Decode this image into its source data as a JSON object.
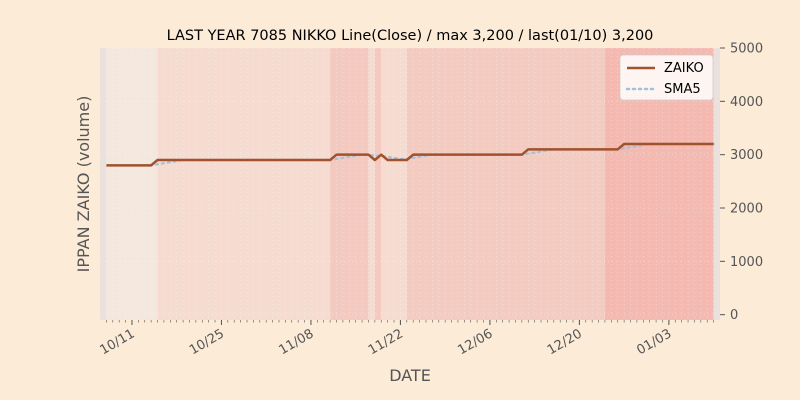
{
  "chart_data": {
    "type": "line",
    "title": "LAST YEAR 7085 NIKKO Line(Close) / max 3,200 / last(01/10) 3,200",
    "xlabel": "DATE",
    "ylabel": "IPPAN ZAIKO (volume)",
    "ylim": [
      -100,
      5000
    ],
    "y_axis_side": "right",
    "yticks": [
      0,
      1000,
      2000,
      3000,
      4000,
      5000
    ],
    "ytick_labels": [
      "0",
      "1000",
      "2000",
      "3000",
      "4000",
      "5000"
    ],
    "xlim": [
      "10/06",
      "01/11"
    ],
    "xticks": [
      "10/11",
      "10/25",
      "11/08",
      "11/22",
      "12/06",
      "12/20",
      "01/03"
    ],
    "grid": true,
    "legend_position": "top-right",
    "dates": [
      "10/07",
      "10/08",
      "10/09",
      "10/10",
      "10/11",
      "10/12",
      "10/13",
      "10/14",
      "10/15",
      "10/16",
      "10/17",
      "10/18",
      "10/19",
      "10/20",
      "10/21",
      "10/22",
      "10/23",
      "10/24",
      "10/25",
      "10/26",
      "10/27",
      "10/28",
      "10/29",
      "10/30",
      "10/31",
      "11/01",
      "11/02",
      "11/03",
      "11/04",
      "11/05",
      "11/06",
      "11/07",
      "11/08",
      "11/09",
      "11/10",
      "11/11",
      "11/12",
      "11/13",
      "11/14",
      "11/15",
      "11/16",
      "11/17",
      "11/18",
      "11/19",
      "11/20",
      "11/21",
      "11/22",
      "11/23",
      "11/24",
      "11/25",
      "11/26",
      "11/27",
      "11/28",
      "11/29",
      "11/30",
      "12/01",
      "12/02",
      "12/03",
      "12/04",
      "12/05",
      "12/06",
      "12/07",
      "12/08",
      "12/09",
      "12/10",
      "12/11",
      "12/12",
      "12/13",
      "12/14",
      "12/15",
      "12/16",
      "12/17",
      "12/18",
      "12/19",
      "12/20",
      "12/21",
      "12/22",
      "12/23",
      "12/24",
      "12/25",
      "12/26",
      "12/27",
      "12/28",
      "12/29",
      "12/30",
      "12/31",
      "01/01",
      "01/02",
      "01/03",
      "01/04",
      "01/05",
      "01/06",
      "01/07",
      "01/08",
      "01/09",
      "01/10"
    ],
    "series": [
      {
        "name": "ZAIKO",
        "color": "#a0522d",
        "style": "solid",
        "values": [
          2800,
          2800,
          2800,
          2800,
          2800,
          2800,
          2800,
          2800,
          2900,
          2900,
          2900,
          2900,
          2900,
          2900,
          2900,
          2900,
          2900,
          2900,
          2900,
          2900,
          2900,
          2900,
          2900,
          2900,
          2900,
          2900,
          2900,
          2900,
          2900,
          2900,
          2900,
          2900,
          2900,
          2900,
          2900,
          2900,
          3000,
          3000,
          3000,
          3000,
          3000,
          3000,
          2900,
          3000,
          2900,
          2900,
          2900,
          2900,
          3000,
          3000,
          3000,
          3000,
          3000,
          3000,
          3000,
          3000,
          3000,
          3000,
          3000,
          3000,
          3000,
          3000,
          3000,
          3000,
          3000,
          3000,
          3100,
          3100,
          3100,
          3100,
          3100,
          3100,
          3100,
          3100,
          3100,
          3100,
          3100,
          3100,
          3100,
          3100,
          3100,
          3200,
          3200,
          3200,
          3200,
          3200,
          3200,
          3200,
          3200,
          3200,
          3200,
          3200,
          3200,
          3200,
          3200,
          3200
        ]
      },
      {
        "name": "SMA5",
        "color": "#a7c0d8",
        "style": "dotted",
        "values": [
          null,
          null,
          null,
          null,
          2800,
          2800,
          2800,
          2800,
          2820,
          2840,
          2860,
          2880,
          2900,
          2900,
          2900,
          2900,
          2900,
          2900,
          2900,
          2900,
          2900,
          2900,
          2900,
          2900,
          2900,
          2900,
          2900,
          2900,
          2900,
          2900,
          2900,
          2900,
          2900,
          2900,
          2900,
          2900,
          2920,
          2940,
          2960,
          2980,
          3000,
          3000,
          2980,
          2980,
          2960,
          2940,
          2920,
          2920,
          2940,
          2960,
          2980,
          3000,
          3000,
          3000,
          3000,
          3000,
          3000,
          3000,
          3000,
          3000,
          3000,
          3000,
          3000,
          3000,
          3000,
          3000,
          3020,
          3040,
          3060,
          3080,
          3100,
          3100,
          3100,
          3100,
          3100,
          3100,
          3100,
          3100,
          3100,
          3100,
          3100,
          3120,
          3140,
          3160,
          3180,
          3200,
          3200,
          3200,
          3200,
          3200,
          3200,
          3200,
          3200,
          3200,
          3200,
          3200
        ]
      }
    ],
    "bands": [
      {
        "from": "10/06",
        "to": "10/07",
        "color": "#ebe1dc"
      },
      {
        "from": "10/07",
        "to": "10/15",
        "color": "#f3e7de"
      },
      {
        "from": "10/15",
        "to": "11/11",
        "color": "#f5dbd0"
      },
      {
        "from": "11/11",
        "to": "11/17",
        "color": "#f4c9bf"
      },
      {
        "from": "11/17",
        "to": "11/18",
        "color": "#f5dbd0"
      },
      {
        "from": "11/18",
        "to": "11/19",
        "color": "#f4c9bf"
      },
      {
        "from": "11/19",
        "to": "11/23",
        "color": "#f5dbd0"
      },
      {
        "from": "11/23",
        "to": "12/24",
        "color": "#f4cbc0"
      },
      {
        "from": "12/24",
        "to": "01/10",
        "color": "#f4b9b0"
      },
      {
        "from": "01/10",
        "to": "01/11",
        "color": "#ebe1dc"
      }
    ]
  }
}
